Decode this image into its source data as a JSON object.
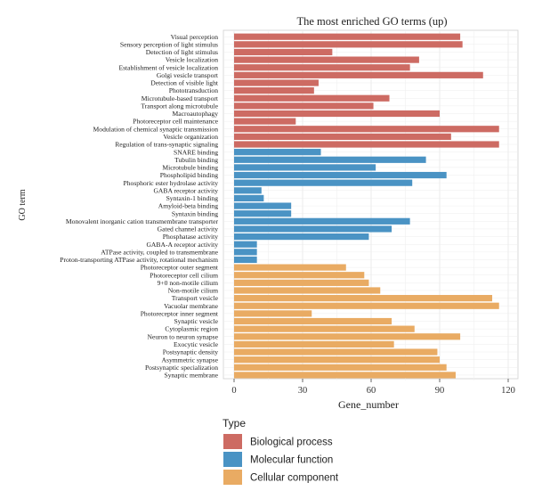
{
  "chart_data": {
    "type": "bar",
    "orientation": "horizontal",
    "title": "The most enriched GO terms (up)",
    "xlabel": "Gene_number",
    "ylabel": "GO term",
    "xlim": [
      0,
      120
    ],
    "xticks": [
      0,
      30,
      60,
      90,
      120
    ],
    "grid": true,
    "legend": {
      "title": "Type",
      "placement": "bottom-left",
      "entries": [
        {
          "name": "Biological process",
          "color": "#cd6b63"
        },
        {
          "name": "Molecular function",
          "color": "#4a93c4"
        },
        {
          "name": "Cellular component",
          "color": "#e9ab63"
        }
      ]
    },
    "bars": [
      {
        "category": "Visual perception",
        "value": 99,
        "type": 0
      },
      {
        "category": "Sensory perception of light stimulus",
        "value": 100,
        "type": 0
      },
      {
        "category": "Detection of light stimulus",
        "value": 43,
        "type": 0
      },
      {
        "category": "Vesicle localization",
        "value": 81,
        "type": 0
      },
      {
        "category": "Establishment of vesicle localization",
        "value": 77,
        "type": 0
      },
      {
        "category": "Golgi vesicle transport",
        "value": 109,
        "type": 0
      },
      {
        "category": "Detection of visible light",
        "value": 37,
        "type": 0
      },
      {
        "category": "Phototransduction",
        "value": 35,
        "type": 0
      },
      {
        "category": "Microtubule-based transport",
        "value": 68,
        "type": 0
      },
      {
        "category": "Transport along microtubule",
        "value": 61,
        "type": 0
      },
      {
        "category": "Macroautophagy",
        "value": 90,
        "type": 0
      },
      {
        "category": "Photoreceptor cell maintenance",
        "value": 27,
        "type": 0
      },
      {
        "category": "Modulation of chemical synaptic transmission",
        "value": 116,
        "type": 0
      },
      {
        "category": "Vesicle organization",
        "value": 95,
        "type": 0
      },
      {
        "category": "Regulation of trans-synaptic signaling",
        "value": 116,
        "type": 0
      },
      {
        "category": "SNARE binding",
        "value": 38,
        "type": 1
      },
      {
        "category": "Tubulin binding",
        "value": 84,
        "type": 1
      },
      {
        "category": "Microtubule binding",
        "value": 62,
        "type": 1
      },
      {
        "category": "Phospholipid binding",
        "value": 93,
        "type": 1
      },
      {
        "category": "Phosphoric ester hydrolase activity",
        "value": 78,
        "type": 1
      },
      {
        "category": "GABA receptor activity",
        "value": 12,
        "type": 1
      },
      {
        "category": "Syntaxin-1 binding",
        "value": 13,
        "type": 1
      },
      {
        "category": "Amyloid-beta binding",
        "value": 25,
        "type": 1
      },
      {
        "category": "Syntaxin binding",
        "value": 25,
        "type": 1
      },
      {
        "category": "Monovalent inorganic cation transmembrane transporter",
        "value": 77,
        "type": 1
      },
      {
        "category": "Gated channel activity",
        "value": 69,
        "type": 1
      },
      {
        "category": "Phosphatase activity",
        "value": 59,
        "type": 1
      },
      {
        "category": "GABA-A receptor activity",
        "value": 10,
        "type": 1
      },
      {
        "category": "ATPase activity, coupled to transmembrane",
        "value": 10,
        "type": 1
      },
      {
        "category": "Proton-transporting ATPase activity, rotational mechanism",
        "value": 10,
        "type": 1
      },
      {
        "category": "Photoreceptor outer segment",
        "value": 49,
        "type": 2
      },
      {
        "category": "Photoreceptor cell cilium",
        "value": 57,
        "type": 2
      },
      {
        "category": "9+0 non-motile cilium",
        "value": 59,
        "type": 2
      },
      {
        "category": "Non-motile cilium",
        "value": 64,
        "type": 2
      },
      {
        "category": "Transport vesicle",
        "value": 113,
        "type": 2
      },
      {
        "category": "Vacuolar membrane",
        "value": 116,
        "type": 2
      },
      {
        "category": "Photoreceptor inner segment",
        "value": 34,
        "type": 2
      },
      {
        "category": "Synaptic vesicle",
        "value": 69,
        "type": 2
      },
      {
        "category": "Cytoplasmic region",
        "value": 79,
        "type": 2
      },
      {
        "category": "Neuron to neuron synapse",
        "value": 99,
        "type": 2
      },
      {
        "category": "Exocytic vesicle",
        "value": 70,
        "type": 2
      },
      {
        "category": "Postsynaptic density",
        "value": 89,
        "type": 2
      },
      {
        "category": "Asymmetric synapse",
        "value": 90,
        "type": 2
      },
      {
        "category": "Postsynaptic specialization",
        "value": 93,
        "type": 2
      },
      {
        "category": "Synaptic membrane",
        "value": 97,
        "type": 2
      }
    ]
  }
}
